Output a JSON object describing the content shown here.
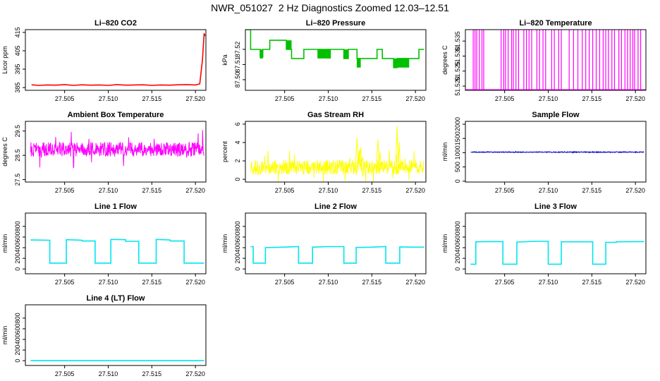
{
  "figure": {
    "title": "NWR_051027  2 Hz Diagnostics Zoomed 12.03–12.51"
  },
  "chart_data": [
    {
      "type": "line",
      "title": "Li–820 CO2",
      "xlabel": "",
      "ylabel": "Licor ppm",
      "color": "#ff0000",
      "xlim": [
        27.5005,
        27.5212
      ],
      "ylim": [
        383.5,
        416.5
      ],
      "x_ticks": [
        27.505,
        27.51,
        27.515,
        27.52
      ],
      "x_tick_labels": [
        "27.505",
        "27.510",
        "27.515",
        "27.520"
      ],
      "y_ticks": [
        385,
        395,
        405,
        415
      ],
      "y_tick_labels": [
        "385",
        "395",
        "405",
        "415"
      ],
      "series": [
        {
          "name": "CO2",
          "x": [
            27.5012,
            27.502,
            27.503,
            27.504,
            27.505,
            27.506,
            27.507,
            27.508,
            27.509,
            27.51,
            27.511,
            27.512,
            27.513,
            27.514,
            27.515,
            27.516,
            27.517,
            27.518,
            27.519,
            27.52,
            27.5205,
            27.5208,
            27.521,
            27.5211
          ],
          "y": [
            386.5,
            386.2,
            386.4,
            386.3,
            386.6,
            386.2,
            386.5,
            386.3,
            386.4,
            386.2,
            386.6,
            386.3,
            386.4,
            386.5,
            386.2,
            386.4,
            386.3,
            386.5,
            386.6,
            386.4,
            387,
            400,
            414.5,
            413
          ]
        }
      ]
    },
    {
      "type": "line",
      "title": "Li–820 Pressure",
      "xlabel": "",
      "ylabel": "kPa",
      "color": "#00c000",
      "xlim": [
        27.5005,
        27.5212
      ],
      "ylim": [
        87.493,
        87.533
      ],
      "x_ticks": [
        27.505,
        27.51,
        27.515,
        27.52
      ],
      "x_tick_labels": [
        "27.505",
        "27.510",
        "27.515",
        "27.520"
      ],
      "y_ticks": [
        87.5,
        87.51,
        87.52
      ],
      "y_tick_labels": [
        "87.50",
        "87.51",
        "87.52"
      ],
      "series": [
        {
          "name": "Pressure",
          "x": [
            27.5005,
            27.5011,
            27.5011,
            27.5022,
            27.5022,
            27.5025,
            27.5025,
            27.5033,
            27.5033,
            27.5052,
            27.5052,
            27.5058,
            27.5058,
            27.5072,
            27.5072,
            27.5088,
            27.5088,
            27.5118,
            27.5118,
            27.5123,
            27.5123,
            27.5133,
            27.5133,
            27.5156,
            27.5156,
            27.5162,
            27.5162,
            27.5175,
            27.5175,
            27.5179,
            27.5179,
            27.5193,
            27.5193,
            27.5204,
            27.5204,
            27.521
          ],
          "y": [
            87.533,
            87.533,
            87.52,
            87.52,
            87.515,
            87.515,
            87.52,
            87.52,
            87.526,
            87.526,
            87.52,
            87.52,
            87.514,
            87.514,
            87.52,
            87.52,
            87.52,
            87.52,
            87.514,
            87.514,
            87.52,
            87.52,
            87.514,
            87.514,
            87.52,
            87.52,
            87.514,
            87.514,
            87.508,
            87.508,
            87.514,
            87.514,
            87.514,
            87.514,
            87.52,
            87.52
          ]
        }
      ],
      "noise_bands": [
        {
          "x0": 27.5022,
          "x1": 27.5025,
          "y0": 87.514,
          "y1": 87.52
        },
        {
          "x0": 27.5052,
          "x1": 27.5058,
          "y0": 87.52,
          "y1": 87.526
        },
        {
          "x0": 27.5088,
          "x1": 27.5103,
          "y0": 87.514,
          "y1": 87.52
        },
        {
          "x0": 27.5118,
          "x1": 27.5123,
          "y0": 87.514,
          "y1": 87.52
        },
        {
          "x0": 27.5133,
          "x1": 27.5137,
          "y0": 87.508,
          "y1": 87.514
        },
        {
          "x0": 27.5175,
          "x1": 27.5193,
          "y0": 87.508,
          "y1": 87.514
        }
      ]
    },
    {
      "type": "line",
      "title": "Li–820 Temperature",
      "xlabel": "",
      "ylabel": "degrees C",
      "color": "#ff00ff",
      "xlim": [
        27.5005,
        27.5212
      ],
      "ylim": [
        51.5186,
        51.5388
      ],
      "x_ticks": [
        27.505,
        27.51,
        27.515,
        27.52
      ],
      "x_tick_labels": [
        "27.505",
        "27.510",
        "27.515",
        "27.520"
      ],
      "y_ticks": [
        51.52,
        51.525,
        51.53,
        51.535
      ],
      "y_tick_labels": [
        "51.520",
        "51.525",
        "51.530",
        "51.535"
      ],
      "base": 51.5188,
      "spike_top": 51.5388,
      "spikes_x": [
        27.5014,
        27.5016,
        27.5018,
        27.5021,
        27.5024,
        27.5026,
        27.5046,
        27.5049,
        27.5051,
        27.5054,
        27.5058,
        27.506,
        27.5063,
        27.5066,
        27.5072,
        27.5075,
        27.5078,
        27.5081,
        27.5087,
        27.509,
        27.5094,
        27.5097,
        27.5104,
        27.5107,
        27.5112,
        27.5115,
        27.5124,
        27.5129,
        27.5134,
        27.5139,
        27.5143,
        27.5147,
        27.5151,
        27.5155,
        27.5159,
        27.5163,
        27.5166,
        27.5169,
        27.5173,
        27.5176,
        27.5181,
        27.5184,
        27.5188,
        27.5191,
        27.5194,
        27.5197,
        27.5199,
        27.5203,
        27.5206
      ]
    },
    {
      "type": "line",
      "title": "Ambient Box Temperature",
      "xlabel": "",
      "ylabel": "degrees C",
      "color": "#ff00ff",
      "xlim": [
        27.5005,
        27.5212
      ],
      "ylim": [
        27.4,
        29.9
      ],
      "x_ticks": [
        27.505,
        27.51,
        27.515,
        27.52
      ],
      "x_tick_labels": [
        "27.505",
        "27.510",
        "27.515",
        "27.520"
      ],
      "y_ticks": [
        27.5,
        28.5,
        29.5
      ],
      "y_tick_labels": [
        "27.5",
        "28.5",
        "29.5"
      ],
      "noise": {
        "center": 28.75,
        "amplitude": 0.3,
        "spike": 0.8,
        "x0": 27.5011,
        "x1": 27.521
      }
    },
    {
      "type": "line",
      "title": "Gas Stream RH",
      "xlabel": "",
      "ylabel": "percent",
      "color": "#ffff00",
      "xlim": [
        27.5005,
        27.5212
      ],
      "ylim": [
        -0.3,
        6.3
      ],
      "x_ticks": [
        27.505,
        27.51,
        27.515,
        27.52
      ],
      "x_tick_labels": [
        "27.505",
        "27.510",
        "27.515",
        "27.520"
      ],
      "y_ticks": [
        0,
        2,
        4,
        6
      ],
      "y_tick_labels": [
        "0",
        "2",
        "4",
        "6"
      ],
      "noise": {
        "center": 1.3,
        "amplitude": 0.8,
        "spike": 2.0,
        "x0": 27.5011,
        "x1": 27.521
      },
      "peaks": [
        {
          "x": 27.5133,
          "y": 4.5
        },
        {
          "x": 27.5137,
          "y": 3.5
        },
        {
          "x": 27.5157,
          "y": 4.3
        },
        {
          "x": 27.5179,
          "y": 5.8
        }
      ]
    },
    {
      "type": "line",
      "title": "Sample Flow",
      "xlabel": "",
      "ylabel": "ml/min",
      "color": "#0000cc",
      "xlim": [
        27.5005,
        27.5212
      ],
      "ylim": [
        -30,
        2100
      ],
      "x_ticks": [
        27.505,
        27.51,
        27.515,
        27.52
      ],
      "x_tick_labels": [
        "27.505",
        "27.510",
        "27.515",
        "27.520"
      ],
      "y_ticks": [
        0,
        500,
        1000,
        1500,
        2000
      ],
      "y_tick_labels": [
        "0",
        "500",
        "1000",
        "1500",
        "2000"
      ],
      "noise": {
        "center": 1020,
        "amplitude": 15,
        "spike": 25,
        "x0": 27.5011,
        "x1": 27.521
      }
    },
    {
      "type": "line",
      "title": "Line 1 Flow",
      "xlabel": "",
      "ylabel": "ml/min",
      "color": "#00e5ee",
      "xlim": [
        27.5005,
        27.5212
      ],
      "ylim": [
        -90,
        1050
      ],
      "x_ticks": [
        27.505,
        27.51,
        27.515,
        27.52
      ],
      "x_tick_labels": [
        "27.505",
        "27.510",
        "27.515",
        "27.520"
      ],
      "y_ticks": [
        0,
        200,
        400,
        600,
        800
      ],
      "y_tick_labels": [
        "0",
        "200",
        "400",
        "600",
        "800"
      ],
      "series": [
        {
          "name": "Line 1",
          "x": [
            27.5011,
            27.5033,
            27.5033,
            27.5052,
            27.5052,
            27.507,
            27.507,
            27.5085,
            27.5085,
            27.5103,
            27.5103,
            27.512,
            27.512,
            27.5135,
            27.5135,
            27.5155,
            27.5155,
            27.5171,
            27.5171,
            27.5187,
            27.5187,
            27.521
          ],
          "y": [
            545,
            540,
            110,
            110,
            550,
            540,
            525,
            525,
            110,
            110,
            555,
            550,
            520,
            520,
            110,
            110,
            555,
            545,
            525,
            525,
            110,
            110
          ]
        }
      ]
    },
    {
      "type": "line",
      "title": "Line 2 Flow",
      "xlabel": "",
      "ylabel": "ml/min",
      "color": "#00e5ee",
      "xlim": [
        27.5005,
        27.5212
      ],
      "ylim": [
        -90,
        1050
      ],
      "x_ticks": [
        27.505,
        27.51,
        27.515,
        27.52
      ],
      "x_tick_labels": [
        "27.505",
        "27.510",
        "27.515",
        "27.520"
      ],
      "y_ticks": [
        0,
        200,
        400,
        600,
        800
      ],
      "y_tick_labels": [
        "0",
        "200",
        "400",
        "600",
        "800"
      ],
      "series": [
        {
          "name": "Line 2",
          "x": [
            27.5011,
            27.5014,
            27.5014,
            27.5028,
            27.5028,
            27.5048,
            27.5048,
            27.5066,
            27.5066,
            27.5082,
            27.5082,
            27.51,
            27.51,
            27.5118,
            27.5118,
            27.5132,
            27.5132,
            27.515,
            27.515,
            27.5166,
            27.5166,
            27.5182,
            27.5182,
            27.5198,
            27.5198,
            27.521
          ],
          "y": [
            420,
            420,
            110,
            110,
            400,
            410,
            410,
            420,
            110,
            110,
            410,
            420,
            420,
            420,
            110,
            110,
            405,
            410,
            410,
            420,
            110,
            110,
            415,
            410,
            410,
            410
          ]
        }
      ]
    },
    {
      "type": "line",
      "title": "Line 3 Flow",
      "xlabel": "",
      "ylabel": "ml/min",
      "color": "#00e5ee",
      "xlim": [
        27.5005,
        27.5212
      ],
      "ylim": [
        -90,
        1050
      ],
      "x_ticks": [
        27.505,
        27.51,
        27.515,
        27.52
      ],
      "x_tick_labels": [
        "27.505",
        "27.510",
        "27.515",
        "27.520"
      ],
      "y_ticks": [
        0,
        200,
        400,
        600,
        800
      ],
      "y_tick_labels": [
        "0",
        "200",
        "400",
        "600",
        "800"
      ],
      "series": [
        {
          "name": "Line 3",
          "x": [
            27.5011,
            27.5017,
            27.5017,
            27.5032,
            27.5032,
            27.5048,
            27.5048,
            27.5064,
            27.5064,
            27.5085,
            27.5085,
            27.51,
            27.51,
            27.5115,
            27.5115,
            27.5133,
            27.5133,
            27.5151,
            27.5151,
            27.5166,
            27.5166,
            27.5178,
            27.5178,
            27.521
          ],
          "y": [
            90,
            90,
            510,
            515,
            515,
            515,
            90,
            90,
            505,
            520,
            520,
            520,
            90,
            90,
            510,
            510,
            510,
            510,
            90,
            90,
            500,
            500,
            510,
            515
          ]
        }
      ]
    },
    {
      "type": "line",
      "title": "Line 4 (LT) Flow",
      "xlabel": "",
      "ylabel": "ml/min",
      "color": "#00e5ee",
      "xlim": [
        27.5005,
        27.5212
      ],
      "ylim": [
        -90,
        1050
      ],
      "x_ticks": [
        27.505,
        27.51,
        27.515,
        27.52
      ],
      "x_tick_labels": [
        "27.505",
        "27.510",
        "27.515",
        "27.520"
      ],
      "y_ticks": [
        0,
        200,
        400,
        600,
        800
      ],
      "y_tick_labels": [
        "0",
        "200",
        "400",
        "600",
        "800"
      ],
      "series": [
        {
          "name": "Line 4 (LT)",
          "x": [
            27.5011,
            27.521
          ],
          "y": [
            0,
            0
          ]
        }
      ]
    }
  ]
}
